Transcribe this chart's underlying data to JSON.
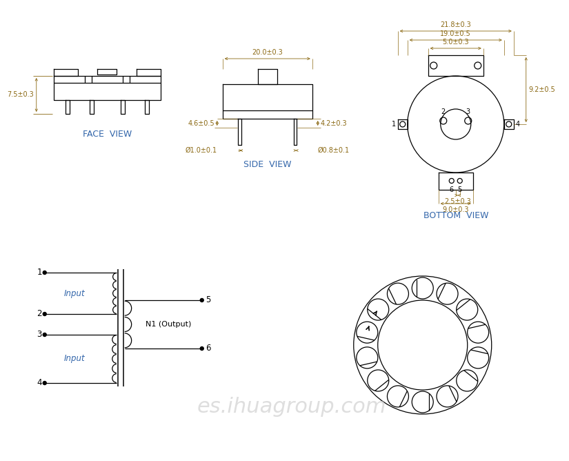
{
  "bg_color": "#ffffff",
  "line_color": "#000000",
  "dim_color": "#8B6914",
  "label_color": "#3366aa",
  "watermark_color": "#d0d0d0",
  "watermark_text": "es.ihuagroup.com",
  "face_view_label": "FACE  VIEW",
  "side_view_label": "SIDE  VIEW",
  "bottom_view_label": "BOTTOM  VIEW",
  "dim_75": "7.5±0.3",
  "dim_200": "20.0±0.3",
  "dim_218": "21.8±0.3",
  "dim_190": "19.0±0.5",
  "dim_50": "5.0±0.3",
  "dim_92": "9.2±0.5",
  "dim_25": "2.5±0.3",
  "dim_90": "9.0±0.3",
  "dim_46": "4.6±0.5",
  "dim_42": "4.2±0.3",
  "dim_10": "Ø1.0±0.1",
  "dim_08": "Ø0.8±0.1",
  "input_label": "Input",
  "output_label": "N1 (Output)"
}
